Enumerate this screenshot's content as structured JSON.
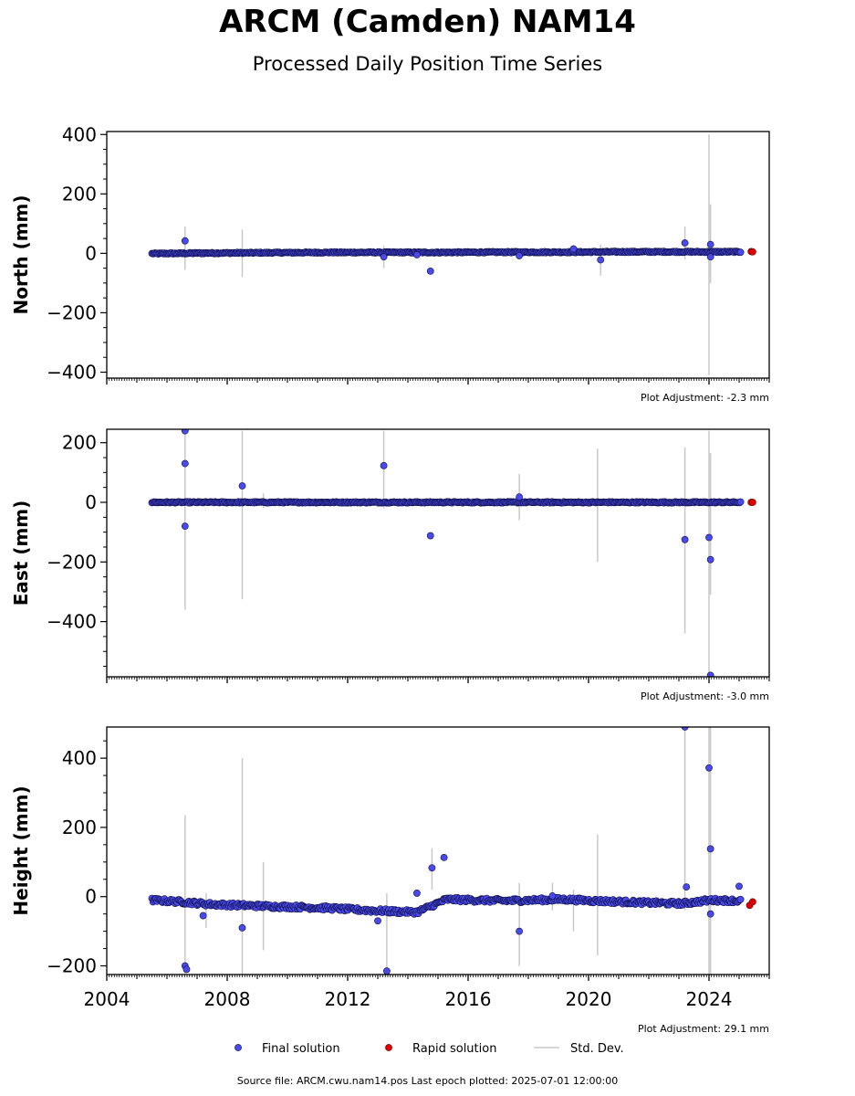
{
  "title": "ARCM (Camden) NAM14",
  "subtitle": "Processed Daily Position Time Series",
  "source_text": "Source file: ARCM.cwu.nam14.pos  Last epoch plotted: 2025-07-01 12:00:00",
  "legend": {
    "final_label": "Final solution",
    "rapid_label": "Rapid solution",
    "std_label": "Std. Dev.",
    "placement": "bottom-center"
  },
  "colors": {
    "final": "#4a4aea",
    "rapid": "#e00000",
    "std": "#c8c8c8",
    "axis": "#000000"
  },
  "chart_data": [
    {
      "type": "scatter",
      "panel": "north",
      "ylabel": "North (mm)",
      "ylim": [
        -420,
        410
      ],
      "yticks": [
        400,
        200,
        0,
        -200,
        -400
      ],
      "ytick_labels": [
        "400",
        "200",
        "0",
        "−200",
        "−400"
      ],
      "xlim": [
        2004.0,
        2026.0
      ],
      "adjustment": "Plot Adjustment: -2.3 mm",
      "baseline": {
        "start": 2005.5,
        "end": 2025.05,
        "values": [
          -1,
          1,
          2,
          3,
          3,
          3,
          4,
          4,
          5,
          5,
          5
        ]
      },
      "outliers": [
        {
          "x": 2006.6,
          "y": 42
        },
        {
          "x": 2013.2,
          "y": -12
        },
        {
          "x": 2014.3,
          "y": -5
        },
        {
          "x": 2014.75,
          "y": -60
        },
        {
          "x": 2017.7,
          "y": -8
        },
        {
          "x": 2019.5,
          "y": 15
        },
        {
          "x": 2020.4,
          "y": -22
        },
        {
          "x": 2023.2,
          "y": 35
        },
        {
          "x": 2024.05,
          "y": 30
        },
        {
          "x": 2024.05,
          "y": -12
        }
      ],
      "rapid": [
        {
          "x": 2025.4,
          "y": 6
        },
        {
          "x": 2025.45,
          "y": 5
        }
      ],
      "std_bars": [
        {
          "x": 2006.6,
          "lo": -55,
          "hi": 90
        },
        {
          "x": 2008.5,
          "lo": -80,
          "hi": 80
        },
        {
          "x": 2013.2,
          "lo": -50,
          "hi": 25
        },
        {
          "x": 2020.4,
          "lo": -75,
          "hi": 30
        },
        {
          "x": 2023.2,
          "lo": -20,
          "hi": 90
        },
        {
          "x": 2024.0,
          "lo": -410,
          "hi": 400
        },
        {
          "x": 2024.05,
          "lo": -100,
          "hi": 165
        }
      ]
    },
    {
      "type": "scatter",
      "panel": "east",
      "ylabel": "East (mm)",
      "ylim": [
        -585,
        245
      ],
      "yticks": [
        200,
        0,
        -200,
        -400
      ],
      "ytick_labels": [
        "200",
        "0",
        "−200",
        "−400"
      ],
      "xlim": [
        2004.0,
        2026.0
      ],
      "adjustment": "Plot Adjustment: -3.0 mm",
      "baseline": {
        "start": 2005.5,
        "end": 2025.05,
        "values": [
          0,
          0,
          0,
          0,
          0,
          0,
          0,
          0,
          0,
          0,
          0
        ]
      },
      "outliers": [
        {
          "x": 2006.6,
          "y": 240
        },
        {
          "x": 2006.6,
          "y": 130
        },
        {
          "x": 2006.6,
          "y": -80
        },
        {
          "x": 2008.5,
          "y": 55
        },
        {
          "x": 2013.2,
          "y": 123
        },
        {
          "x": 2014.75,
          "y": -112
        },
        {
          "x": 2017.7,
          "y": 18
        },
        {
          "x": 2023.2,
          "y": -125
        },
        {
          "x": 2024.0,
          "y": -118
        },
        {
          "x": 2024.05,
          "y": -192
        },
        {
          "x": 2024.05,
          "y": -580
        }
      ],
      "rapid": [
        {
          "x": 2025.4,
          "y": 0
        },
        {
          "x": 2025.45,
          "y": 0
        }
      ],
      "std_bars": [
        {
          "x": 2006.6,
          "lo": -360,
          "hi": 240
        },
        {
          "x": 2008.5,
          "lo": -325,
          "hi": 240
        },
        {
          "x": 2009.2,
          "lo": -20,
          "hi": 30
        },
        {
          "x": 2013.2,
          "lo": -20,
          "hi": 240
        },
        {
          "x": 2017.7,
          "lo": -60,
          "hi": 95
        },
        {
          "x": 2020.3,
          "lo": -200,
          "hi": 180
        },
        {
          "x": 2023.2,
          "lo": -440,
          "hi": 185
        },
        {
          "x": 2024.0,
          "lo": -585,
          "hi": 240
        },
        {
          "x": 2024.05,
          "lo": -310,
          "hi": 165
        }
      ]
    },
    {
      "type": "scatter",
      "panel": "height",
      "ylabel": "Height (mm)",
      "ylim": [
        -225,
        490
      ],
      "yticks": [
        400,
        200,
        0,
        -200
      ],
      "ytick_labels": [
        "400",
        "200",
        "0",
        "−200"
      ],
      "xlim": [
        2004.0,
        2026.0
      ],
      "xticks": [
        2004,
        2008,
        2012,
        2016,
        2020,
        2024
      ],
      "xtick_labels": [
        "2004",
        "2008",
        "2012",
        "2016",
        "2020",
        "2024"
      ],
      "adjustment": "Plot Adjustment: 29.1 mm",
      "baseline": {
        "start": 2005.5,
        "end": 2025.05,
        "values": [
          -10,
          -15,
          -22,
          -25,
          -28,
          -30,
          -33,
          -38,
          -42,
          -45,
          -8,
          -10,
          -12,
          -10,
          -8,
          -12,
          -15,
          -18,
          -20,
          -10,
          -12
        ]
      },
      "outliers": [
        {
          "x": 2006.6,
          "y": -200
        },
        {
          "x": 2006.65,
          "y": -210
        },
        {
          "x": 2007.2,
          "y": -55
        },
        {
          "x": 2008.5,
          "y": -90
        },
        {
          "x": 2013.0,
          "y": -70
        },
        {
          "x": 2013.3,
          "y": -215
        },
        {
          "x": 2014.3,
          "y": 10
        },
        {
          "x": 2014.8,
          "y": 83
        },
        {
          "x": 2015.2,
          "y": 113
        },
        {
          "x": 2017.7,
          "y": -100
        },
        {
          "x": 2018.8,
          "y": 2
        },
        {
          "x": 2023.2,
          "y": 490
        },
        {
          "x": 2023.25,
          "y": 28
        },
        {
          "x": 2024.0,
          "y": 372
        },
        {
          "x": 2024.05,
          "y": 138
        },
        {
          "x": 2024.05,
          "y": -50
        },
        {
          "x": 2025.0,
          "y": 30
        }
      ],
      "rapid": [
        {
          "x": 2025.35,
          "y": -25
        },
        {
          "x": 2025.45,
          "y": -15
        }
      ],
      "std_bars": [
        {
          "x": 2006.6,
          "lo": -225,
          "hi": 235
        },
        {
          "x": 2007.3,
          "lo": -90,
          "hi": 10
        },
        {
          "x": 2008.5,
          "lo": -225,
          "hi": 400
        },
        {
          "x": 2009.2,
          "lo": -155,
          "hi": 100
        },
        {
          "x": 2013.3,
          "lo": -225,
          "hi": 10
        },
        {
          "x": 2014.8,
          "lo": 20,
          "hi": 140
        },
        {
          "x": 2017.7,
          "lo": -200,
          "hi": 40
        },
        {
          "x": 2018.8,
          "lo": -40,
          "hi": 40
        },
        {
          "x": 2019.5,
          "lo": -100,
          "hi": 20
        },
        {
          "x": 2020.3,
          "lo": -170,
          "hi": 180
        },
        {
          "x": 2023.2,
          "lo": -40,
          "hi": 490
        },
        {
          "x": 2024.0,
          "lo": -225,
          "hi": 490
        },
        {
          "x": 2024.05,
          "lo": -225,
          "hi": 490
        }
      ]
    }
  ]
}
